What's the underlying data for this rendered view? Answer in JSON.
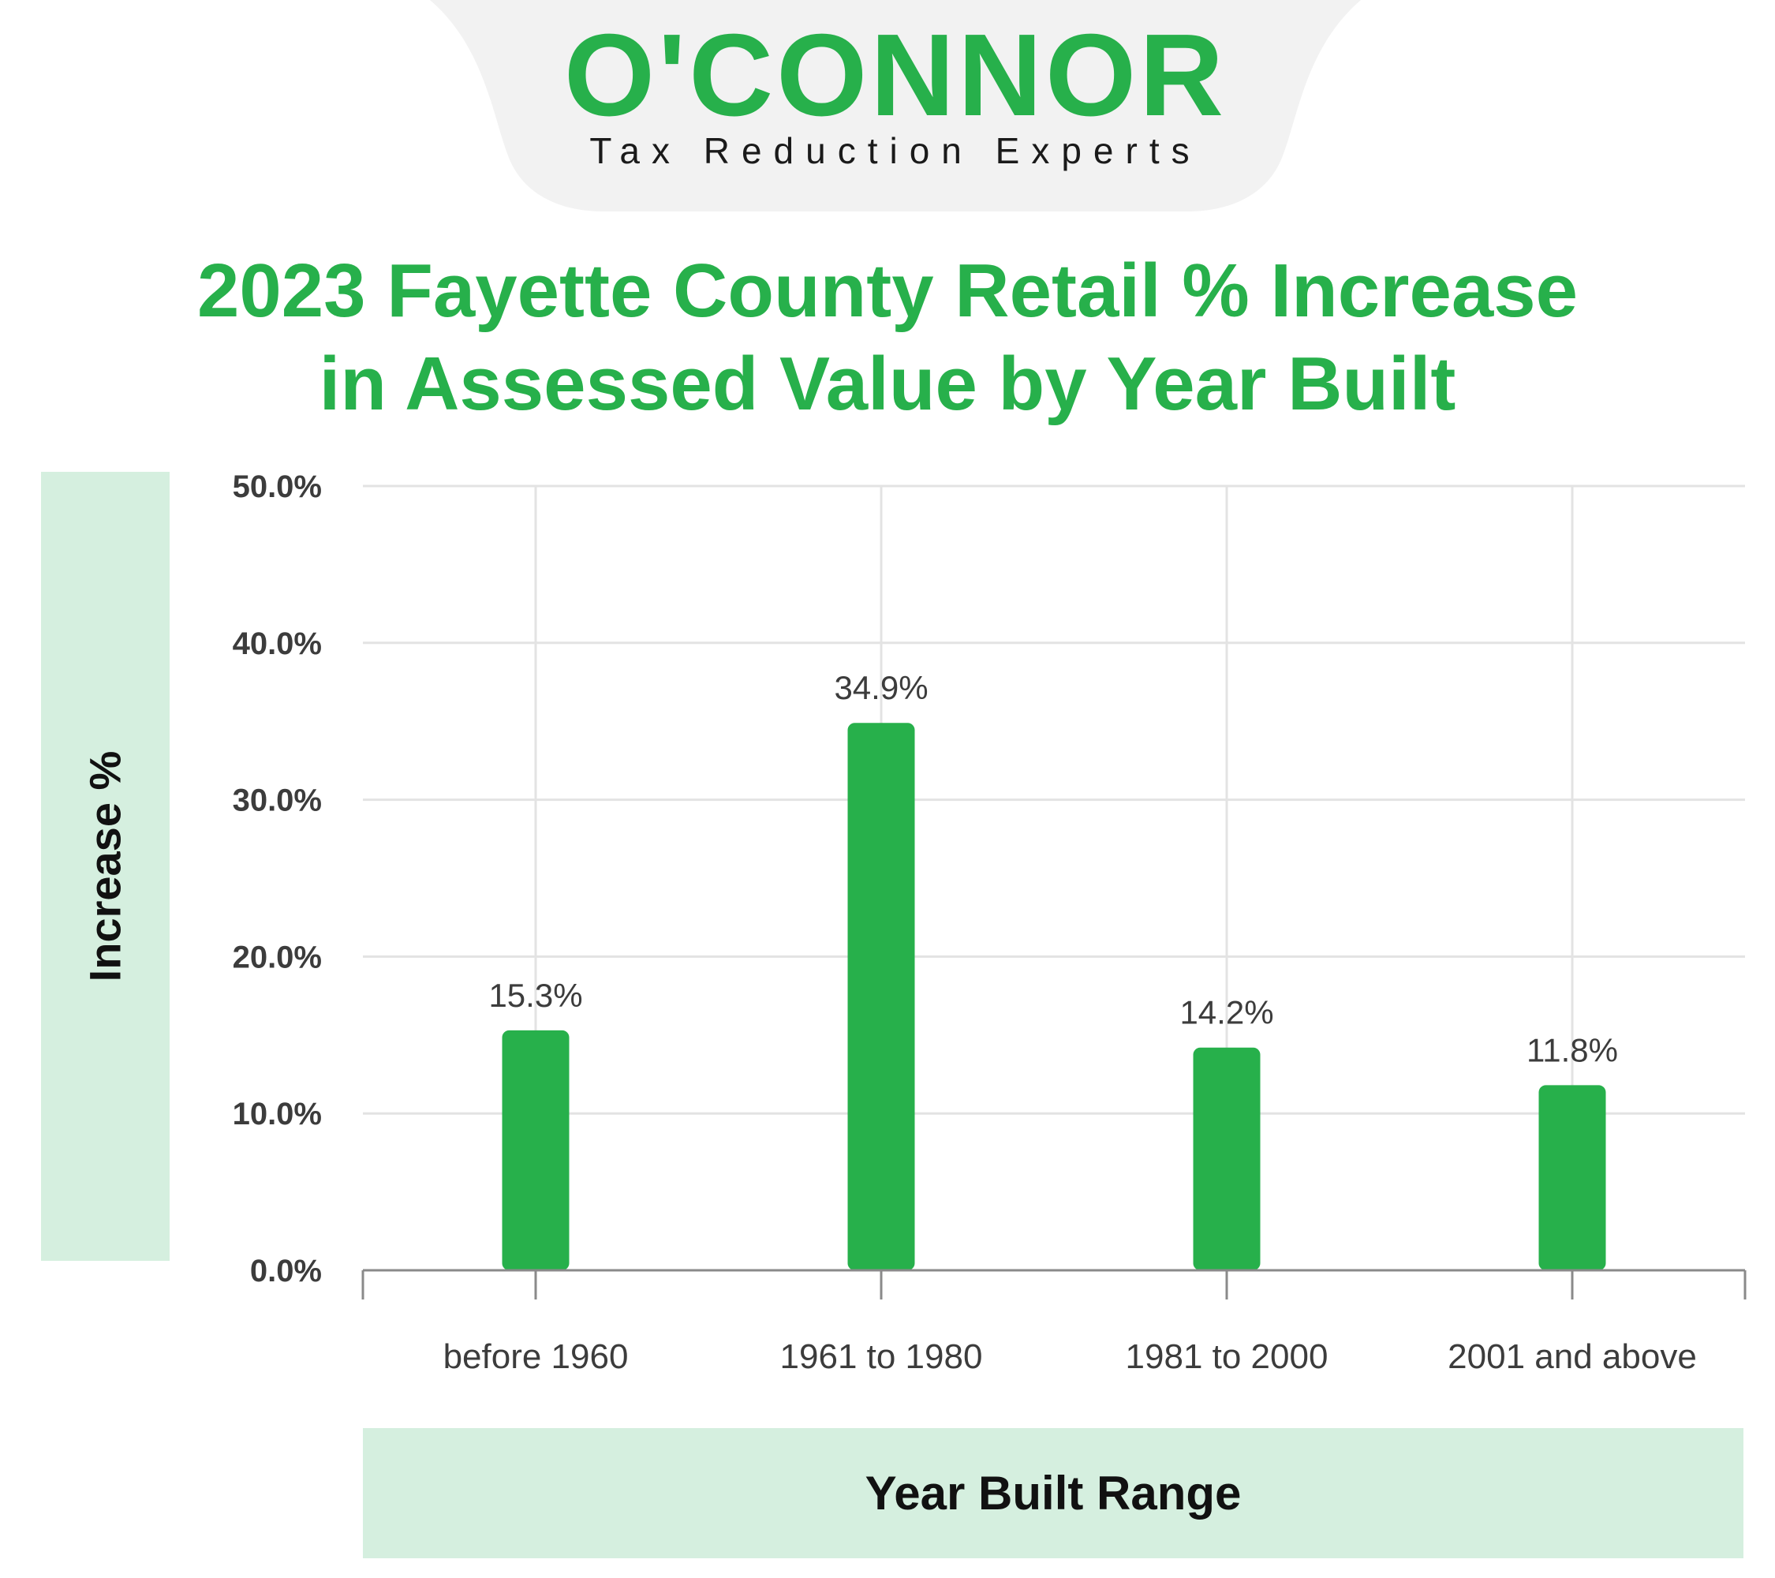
{
  "brand": {
    "name": "O'CONNOR",
    "tagline": "Tax Reduction Experts",
    "color": "#27b04b",
    "tab_color": "#f2f2f2"
  },
  "panel_color": "#d5efdf",
  "chart_data": {
    "type": "bar",
    "title_lines": [
      "2023 Fayette County Retail % Increase",
      "in Assessed Value by Year Built"
    ],
    "xlabel": "Year Built Range",
    "ylabel": "Increase %",
    "categories": [
      "before 1960",
      "1961 to 1980",
      "1981 to 2000",
      "2001 and above"
    ],
    "values": [
      15.3,
      34.9,
      14.2,
      11.8
    ],
    "data_labels": [
      "15.3%",
      "34.9%",
      "14.2%",
      "11.8%"
    ],
    "ylim": [
      0,
      50
    ],
    "yticks": [
      0,
      10,
      20,
      30,
      40,
      50
    ],
    "ytick_labels": [
      "0.0%",
      "10.0%",
      "20.0%",
      "30.0%",
      "40.0%",
      "50.0%"
    ],
    "bar_color": "#27b04b",
    "grid": true,
    "legend": "none"
  }
}
